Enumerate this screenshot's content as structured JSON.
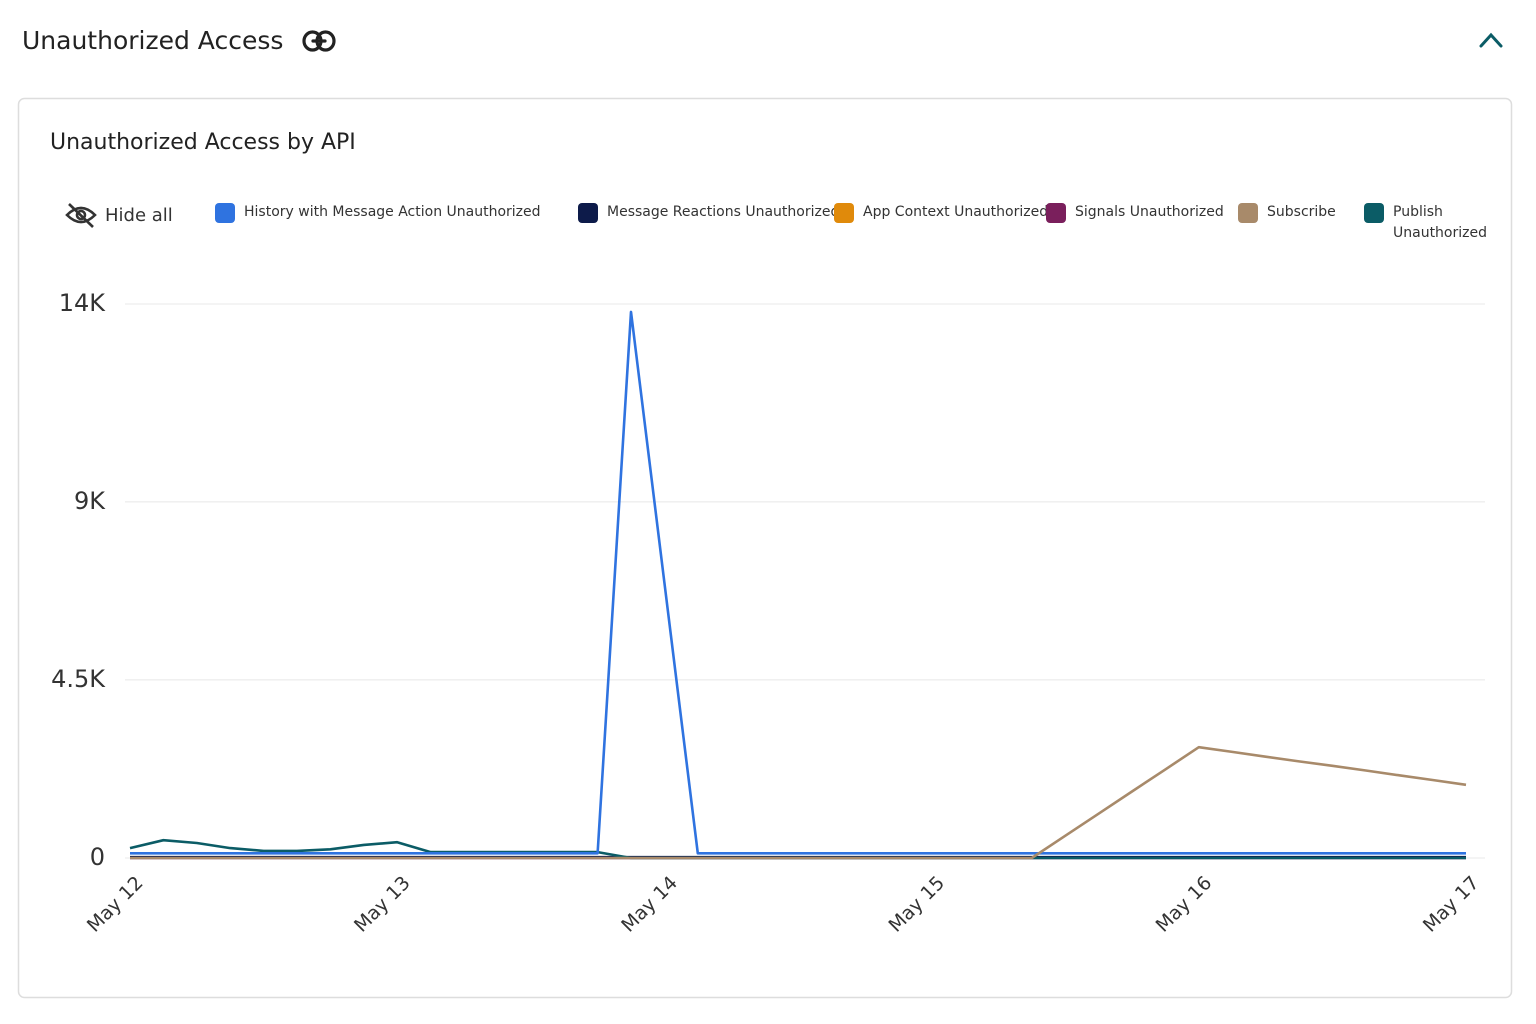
{
  "header": {
    "title": "Unauthorized Access"
  },
  "controls": {
    "hide_all": "Hide all"
  },
  "chart_data": {
    "type": "line",
    "title": "Unauthorized Access by API",
    "categories": [
      "May 12",
      null,
      null,
      null,
      null,
      null,
      null,
      null,
      "May 13",
      null,
      null,
      null,
      null,
      null,
      null,
      null,
      "May 14",
      null,
      null,
      null,
      null,
      null,
      null,
      null,
      "May 15",
      null,
      null,
      null,
      null,
      null,
      null,
      null,
      "May 16",
      null,
      null,
      null,
      null,
      null,
      null,
      null,
      "May 17"
    ],
    "ylim": [
      0,
      14000
    ],
    "yticks": [
      0,
      {
        "value": 4500,
        "label": "4.5K"
      },
      {
        "value": 9000,
        "label": "9K"
      },
      {
        "value": 14000,
        "label": "14K"
      }
    ],
    "grid": true,
    "series": [
      {
        "name": "History with Message Action Unauthorized",
        "color": "#2f73e0",
        "values": [
          120,
          120,
          120,
          120,
          120,
          120,
          120,
          120,
          120,
          120,
          120,
          120,
          120,
          120,
          120,
          13800,
          6960,
          120,
          120,
          120,
          120,
          120,
          120,
          120,
          120,
          120,
          120,
          120,
          120,
          120,
          120,
          120,
          120,
          120,
          120,
          120,
          120,
          120,
          120,
          120,
          120
        ]
      },
      {
        "name": "Message Reactions Unauthorized",
        "color": "#0d1b4a",
        "values": [
          20,
          20,
          20,
          20,
          20,
          20,
          20,
          20,
          20,
          20,
          20,
          20,
          20,
          20,
          20,
          20,
          20,
          20,
          20,
          20,
          20,
          20,
          20,
          20,
          20,
          20,
          20,
          20,
          20,
          20,
          20,
          20,
          20,
          20,
          20,
          20,
          20,
          20,
          20,
          20,
          20
        ]
      },
      {
        "name": "App Context Unauthorized",
        "color": "#e08a0b",
        "values": [
          10,
          10,
          10,
          10,
          10,
          10,
          10,
          10,
          10,
          10,
          10,
          10,
          10,
          10,
          10,
          10,
          10,
          10,
          10,
          10,
          10,
          10,
          10,
          10,
          10,
          10,
          10,
          10,
          10,
          10,
          10,
          10,
          10,
          10,
          10,
          10,
          10,
          10,
          10,
          10,
          10
        ]
      },
      {
        "name": "Signals Unauthorized",
        "color": "#7a1f5c",
        "values": [
          0,
          0,
          0,
          0,
          0,
          0,
          0,
          0,
          0,
          0,
          0,
          0,
          0,
          0,
          0,
          0,
          0,
          0,
          0,
          0,
          0,
          0,
          0,
          0,
          0,
          0,
          0,
          0,
          0,
          0,
          0,
          0,
          0,
          0,
          0,
          0,
          0,
          0,
          0,
          0,
          0
        ]
      },
      {
        "name": "Subscribe",
        "color": "#a88a6a",
        "values": [
          0,
          0,
          0,
          0,
          0,
          0,
          0,
          0,
          0,
          0,
          0,
          0,
          0,
          0,
          0,
          0,
          0,
          0,
          0,
          0,
          0,
          0,
          0,
          0,
          0,
          0,
          0,
          0,
          560,
          1120,
          1680,
          2240,
          2800,
          2680,
          2560,
          2440,
          2330,
          2210,
          2090,
          1970,
          1850
        ]
      },
      {
        "name": "Publish Unauthorized",
        "color": "#0b5c66",
        "values": [
          250,
          450,
          380,
          250,
          180,
          180,
          220,
          330,
          400,
          150,
          150,
          150,
          150,
          150,
          150,
          0,
          0,
          0,
          0,
          0,
          0,
          0,
          0,
          0,
          0,
          0,
          0,
          0,
          0,
          0,
          0,
          0,
          0,
          0,
          0,
          0,
          0,
          0,
          0,
          0,
          0
        ]
      }
    ]
  }
}
